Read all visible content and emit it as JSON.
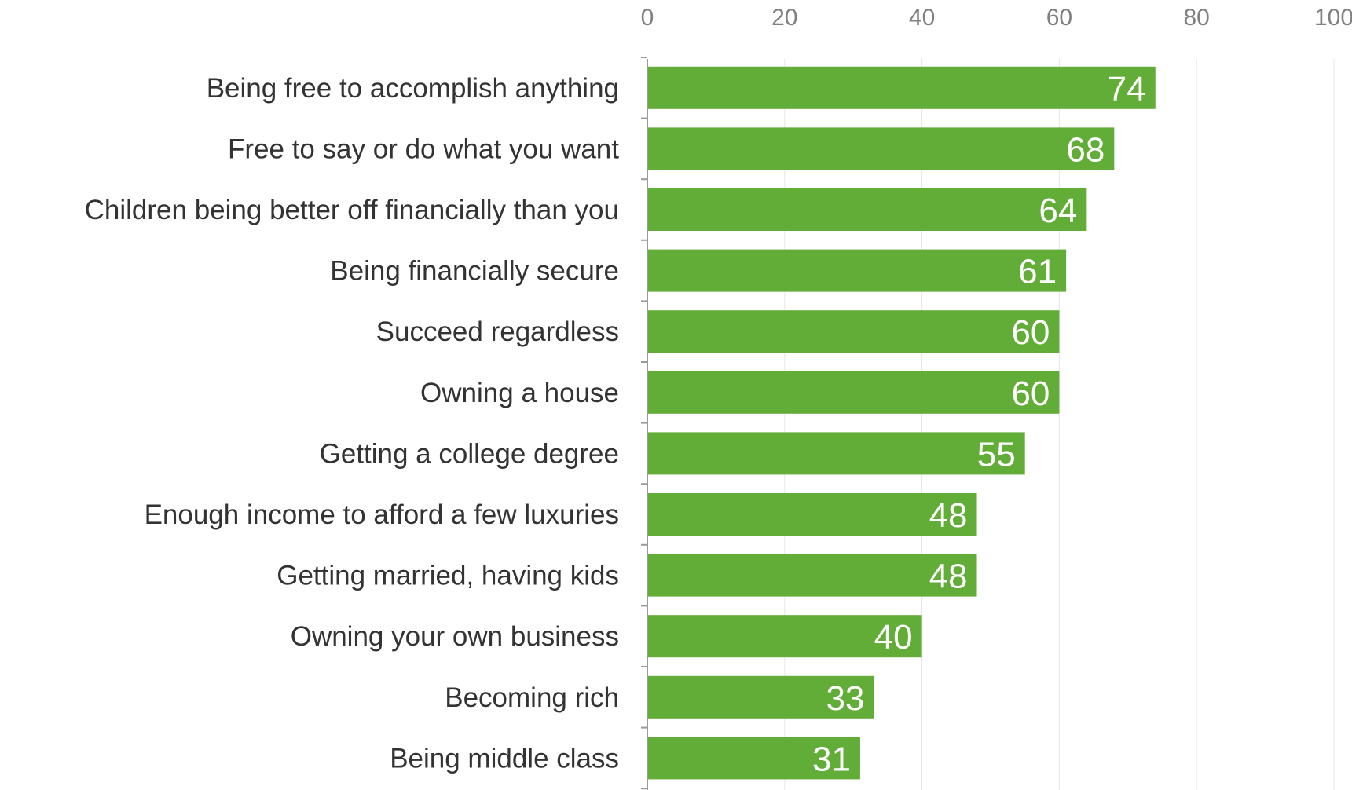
{
  "colors": {
    "bar": "#62ad37",
    "value_label": "#ffffff",
    "grid": "#e6e6e6",
    "axis": "#9a9a9a"
  },
  "chart_data": {
    "type": "bar",
    "orientation": "horizontal",
    "title": "",
    "xlabel": "",
    "ylabel": "",
    "xlim": [
      0,
      100
    ],
    "x_ticks": [
      "0",
      "20",
      "40",
      "60",
      "80",
      "100"
    ],
    "x_axis_position": "top",
    "grid": true,
    "legend": "none",
    "categories": [
      "Being free to accomplish anything",
      "Free to say or do what you want",
      "Children being better off financially than you",
      "Being financially secure",
      "Succeed regardless ",
      "Owning a house",
      "Getting a college degree",
      "Enough income to afford a few luxuries",
      "Getting married, having kids",
      "Owning your own business",
      "Becoming rich",
      "Being middle class"
    ],
    "values": [
      74,
      68,
      64,
      61,
      60,
      60,
      55,
      48,
      48,
      40,
      33,
      31
    ]
  }
}
